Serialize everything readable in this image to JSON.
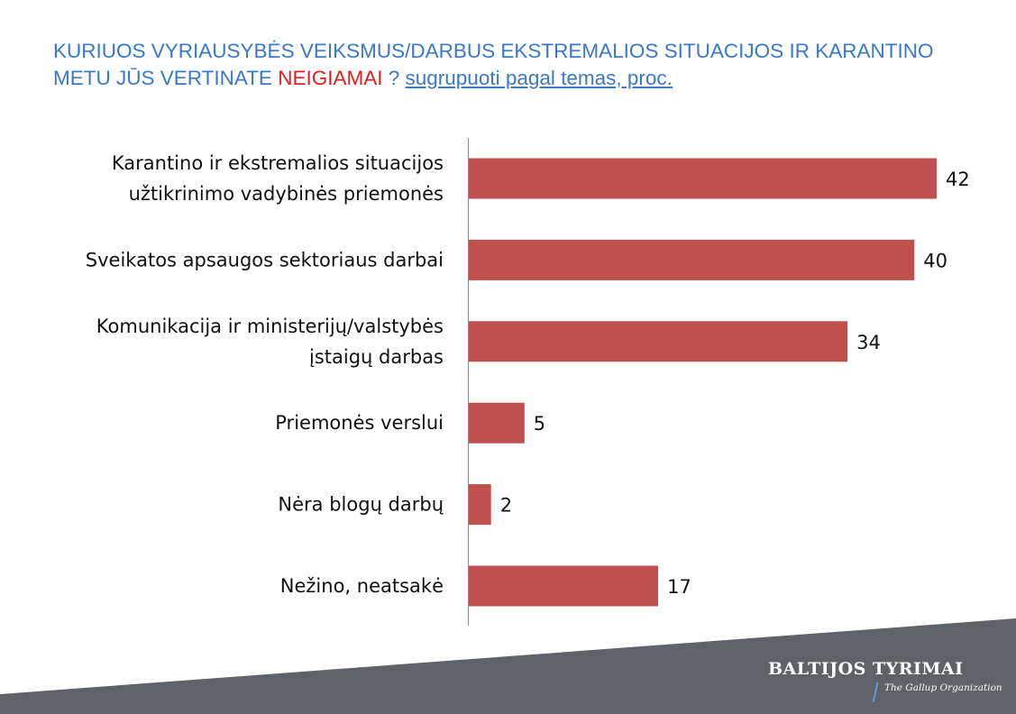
{
  "title": {
    "part1": "KURIUOS VYRIAUSYBĖS VEIKSMUS/DARBUS EKSTREMALIOS SITUACIJOS IR KARANTINO METU JŪS VERTINATE ",
    "negative_word": "NEIGIAMAI",
    "part2": " ? ",
    "link_text": "sugrupuoti pagal temas, proc."
  },
  "chart_data": {
    "type": "bar",
    "orientation": "horizontal",
    "categories": [
      [
        "Karantino ir ekstremalios situacijos",
        "užtikrinimo vadybinės priemonės"
      ],
      [
        "Sveikatos apsaugos sektoriaus darbai"
      ],
      [
        "Komunikacija ir ministerijų/valstybės",
        "įstaigų darbas"
      ],
      [
        "Priemonės verslui"
      ],
      [
        "Nėra blogų darbų"
      ],
      [
        "Nežino, neatsakė"
      ]
    ],
    "values": [
      42,
      40,
      34,
      5,
      2,
      17
    ],
    "bar_color": "#c0504d",
    "xlim": [
      0,
      42
    ],
    "grid": false,
    "data_labels": true
  },
  "brand": {
    "name": "BALTIJOS TYRIMAI",
    "tagline": "The Gallup Organization"
  },
  "colors": {
    "title": "#3b78c8",
    "negative": "#e02020",
    "footer_band": "#5f6266"
  }
}
